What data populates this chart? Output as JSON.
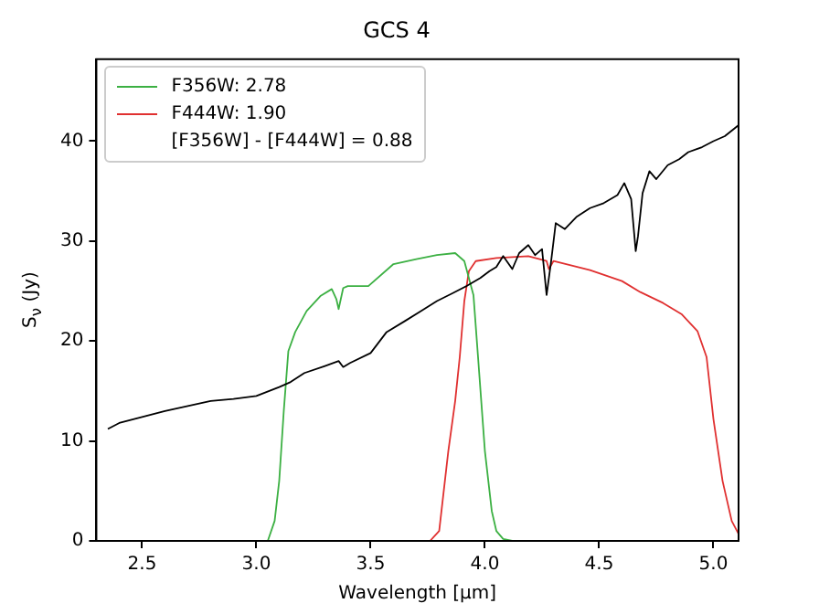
{
  "chart_data": {
    "type": "line",
    "title": "GCS 4",
    "xlabel": "Wavelength [μm]",
    "ylabel": "S$_{ν}$ (Jy)",
    "annotations": [
      "[F356W] - [F444W] = 0.88"
    ],
    "legend": "top left",
    "grid": false,
    "marker": "none",
    "line_style": "solid",
    "xlim": [
      2.3,
      5.11
    ],
    "ylim": [
      0,
      48.2
    ],
    "xticks": [
      2.5,
      {
        "value": 3,
        "label": "3.0"
      },
      3.5,
      {
        "value": 4,
        "label": "4.0"
      },
      4.5,
      {
        "value": 5,
        "label": "5.0"
      }
    ],
    "yticks": [
      0,
      10,
      20,
      30,
      40
    ],
    "series": [
      {
        "color": "#000000",
        "x": [
          2.35,
          2.4,
          2.5,
          2.6,
          2.7,
          2.8,
          2.9,
          3.0,
          3.1,
          3.15,
          3.21,
          3.3,
          3.36,
          3.38,
          3.41,
          3.5,
          3.57,
          3.65,
          3.72,
          3.79,
          3.86,
          3.92,
          3.98,
          4.02,
          4.05,
          4.08,
          4.12,
          4.15,
          4.19,
          4.22,
          4.25,
          4.27,
          4.29,
          4.31,
          4.35,
          4.4,
          4.46,
          4.52,
          4.58,
          4.61,
          4.64,
          4.66,
          4.67,
          4.69,
          4.72,
          4.75,
          4.8,
          4.85,
          4.89,
          4.95,
          5.0,
          5.05,
          5.11
        ],
        "values": [
          11.2,
          11.8,
          12.4,
          13,
          13.5,
          14,
          14.2,
          14.5,
          15.4,
          15.9,
          16.8,
          17.5,
          18,
          17.4,
          17.8,
          18.8,
          20.9,
          22,
          23,
          24,
          24.8,
          25.5,
          26.3,
          27,
          27.4,
          28.5,
          27.2,
          28.8,
          29.6,
          28.6,
          29.2,
          24.6,
          28,
          31.8,
          31.2,
          32.4,
          33.3,
          33.8,
          34.6,
          35.8,
          34.2,
          29,
          30.5,
          34.8,
          37,
          36.2,
          37.6,
          38.2,
          38.9,
          39.4,
          40,
          40.5,
          41.6
        ]
      },
      {
        "name": "F356W: 2.78",
        "color": "#3cb043",
        "x": [
          3.05,
          3.08,
          3.1,
          3.12,
          3.14,
          3.17,
          3.22,
          3.28,
          3.33,
          3.35,
          3.36,
          3.38,
          3.4,
          3.49,
          3.6,
          3.7,
          3.79,
          3.87,
          3.91,
          3.95,
          3.97,
          4.0,
          4.03,
          4.05,
          4.08,
          4.12
        ],
        "values": [
          0,
          2,
          6,
          13,
          19,
          20.9,
          23,
          24.5,
          25.2,
          24.2,
          23.2,
          25.3,
          25.5,
          25.5,
          27.7,
          28.2,
          28.6,
          28.8,
          28,
          24.6,
          18.4,
          9,
          3,
          1,
          0.2,
          0
        ]
      },
      {
        "name": "F444W: 1.90",
        "color": "#e03030",
        "x": [
          3.76,
          3.8,
          3.84,
          3.87,
          3.89,
          3.91,
          3.93,
          3.96,
          4.05,
          4.19,
          4.27,
          4.28,
          4.3,
          4.46,
          4.6,
          4.68,
          4.78,
          4.86,
          4.93,
          4.97,
          5.0,
          5.04,
          5.08,
          5.11
        ],
        "values": [
          0,
          1,
          9,
          14,
          18.4,
          24,
          27,
          28,
          28.3,
          28.5,
          28,
          27.2,
          28,
          27.1,
          26,
          24.9,
          23.8,
          22.7,
          21,
          18.4,
          12.2,
          6,
          2,
          0.7
        ]
      }
    ]
  }
}
